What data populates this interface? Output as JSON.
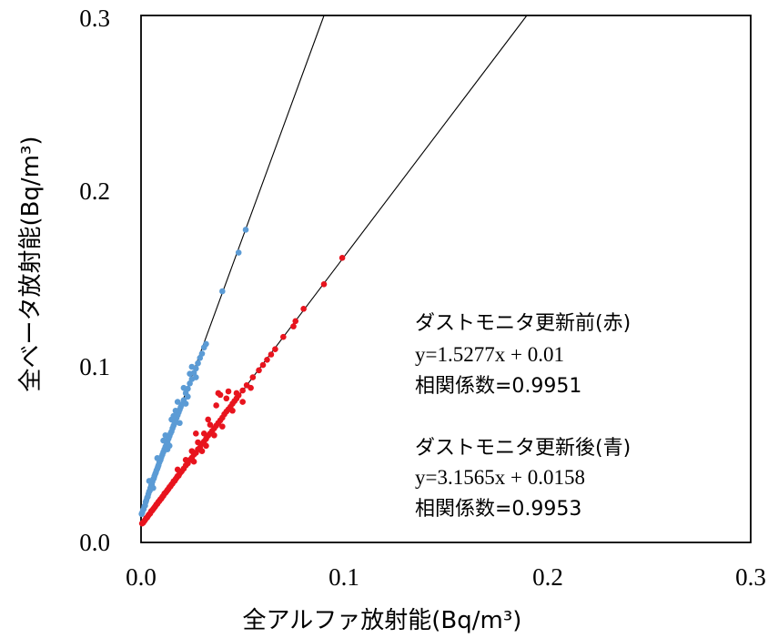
{
  "chart_data": {
    "type": "scatter",
    "xlabel": "全アルファ放射能(Bq/m³)",
    "ylabel": "全ベータ放射能(Bq/m³)",
    "xlim": [
      0,
      0.3
    ],
    "ylim": [
      0,
      0.3
    ],
    "xticks": [
      "0.0",
      "0.1",
      "0.2",
      "0.3"
    ],
    "yticks": [
      "0.0",
      "0.1",
      "0.2",
      "0.3"
    ],
    "grid": false,
    "series": [
      {
        "name": "ダストモニタ更新前(赤)",
        "color": "#e8141e",
        "trend": {
          "slope": 1.5277,
          "intercept": 0.01
        },
        "points": [
          [
            0.0005,
            0.0108
          ],
          [
            0.001,
            0.0112
          ],
          [
            0.0015,
            0.012
          ],
          [
            0.002,
            0.0128
          ],
          [
            0.0025,
            0.0138
          ],
          [
            0.003,
            0.0142
          ],
          [
            0.0035,
            0.0152
          ],
          [
            0.004,
            0.016
          ],
          [
            0.0045,
            0.0165
          ],
          [
            0.005,
            0.0178
          ],
          [
            0.0055,
            0.0182
          ],
          [
            0.006,
            0.019
          ],
          [
            0.0065,
            0.0198
          ],
          [
            0.007,
            0.0205
          ],
          [
            0.0075,
            0.0215
          ],
          [
            0.008,
            0.022
          ],
          [
            0.0085,
            0.023
          ],
          [
            0.009,
            0.0236
          ],
          [
            0.0095,
            0.0245
          ],
          [
            0.01,
            0.025
          ],
          [
            0.0105,
            0.026
          ],
          [
            0.011,
            0.0266
          ],
          [
            0.0115,
            0.0278
          ],
          [
            0.012,
            0.0282
          ],
          [
            0.0125,
            0.029
          ],
          [
            0.013,
            0.0298
          ],
          [
            0.0135,
            0.0305
          ],
          [
            0.014,
            0.0315
          ],
          [
            0.0145,
            0.032
          ],
          [
            0.015,
            0.033
          ],
          [
            0.0155,
            0.0335
          ],
          [
            0.016,
            0.0348
          ],
          [
            0.0165,
            0.035
          ],
          [
            0.017,
            0.036
          ],
          [
            0.0175,
            0.0368
          ],
          [
            0.018,
            0.0378
          ],
          [
            0.0185,
            0.038
          ],
          [
            0.019,
            0.0392
          ],
          [
            0.0195,
            0.04
          ],
          [
            0.02,
            0.0405
          ],
          [
            0.021,
            0.042
          ],
          [
            0.022,
            0.0438
          ],
          [
            0.023,
            0.045
          ],
          [
            0.024,
            0.047
          ],
          [
            0.025,
            0.0482
          ],
          [
            0.026,
            0.05
          ],
          [
            0.027,
            0.051
          ],
          [
            0.028,
            0.053
          ],
          [
            0.029,
            0.054
          ],
          [
            0.03,
            0.0562
          ],
          [
            0.031,
            0.0575
          ],
          [
            0.032,
            0.059
          ],
          [
            0.033,
            0.0608
          ],
          [
            0.034,
            0.062
          ],
          [
            0.035,
            0.0635
          ],
          [
            0.036,
            0.065
          ],
          [
            0.037,
            0.0665
          ],
          [
            0.038,
            0.068
          ],
          [
            0.039,
            0.0695
          ],
          [
            0.04,
            0.071
          ],
          [
            0.041,
            0.073
          ],
          [
            0.042,
            0.0745
          ],
          [
            0.043,
            0.0758
          ],
          [
            0.044,
            0.0772
          ],
          [
            0.045,
            0.079
          ],
          [
            0.046,
            0.0805
          ],
          [
            0.047,
            0.082
          ],
          [
            0.048,
            0.0838
          ],
          [
            0.05,
            0.0865
          ],
          [
            0.052,
            0.0895
          ],
          [
            0.055,
            0.094
          ],
          [
            0.058,
            0.098
          ],
          [
            0.06,
            0.101
          ],
          [
            0.062,
            0.104
          ],
          [
            0.064,
            0.107
          ],
          [
            0.066,
            0.11
          ],
          [
            0.07,
            0.117
          ],
          [
            0.075,
            0.123
          ],
          [
            0.076,
            0.126
          ],
          [
            0.08,
            0.133
          ],
          [
            0.09,
            0.147
          ],
          [
            0.099,
            0.162
          ],
          [
            0.018,
            0.0415
          ],
          [
            0.022,
            0.047
          ],
          [
            0.025,
            0.052
          ],
          [
            0.026,
            0.046
          ],
          [
            0.028,
            0.057
          ],
          [
            0.031,
            0.062
          ],
          [
            0.032,
            0.055
          ],
          [
            0.034,
            0.067
          ],
          [
            0.036,
            0.061
          ],
          [
            0.037,
            0.078
          ],
          [
            0.039,
            0.084
          ],
          [
            0.04,
            0.066
          ],
          [
            0.042,
            0.082
          ],
          [
            0.043,
            0.086
          ],
          [
            0.045,
            0.075
          ],
          [
            0.047,
            0.085
          ],
          [
            0.05,
            0.08
          ],
          [
            0.054,
            0.088
          ],
          [
            0.027,
            0.062
          ],
          [
            0.033,
            0.07
          ],
          [
            0.038,
            0.085
          ],
          [
            0.03,
            0.052
          ]
        ]
      },
      {
        "name": "ダストモニタ更新後(青)",
        "color": "#5b9bd5",
        "trend": {
          "slope": 3.1565,
          "intercept": 0.0158
        },
        "points": [
          [
            0.0003,
            0.0162
          ],
          [
            0.0006,
            0.017
          ],
          [
            0.001,
            0.0185
          ],
          [
            0.0013,
            0.019
          ],
          [
            0.0016,
            0.0205
          ],
          [
            0.002,
            0.021
          ],
          [
            0.0023,
            0.023
          ],
          [
            0.0026,
            0.024
          ],
          [
            0.003,
            0.0255
          ],
          [
            0.0033,
            0.026
          ],
          [
            0.0036,
            0.0275
          ],
          [
            0.004,
            0.029
          ],
          [
            0.0043,
            0.0295
          ],
          [
            0.0046,
            0.031
          ],
          [
            0.005,
            0.0325
          ],
          [
            0.0053,
            0.033
          ],
          [
            0.0056,
            0.0345
          ],
          [
            0.006,
            0.036
          ],
          [
            0.0063,
            0.0365
          ],
          [
            0.0066,
            0.0378
          ],
          [
            0.007,
            0.039
          ],
          [
            0.0073,
            0.0398
          ],
          [
            0.0076,
            0.041
          ],
          [
            0.008,
            0.042
          ],
          [
            0.0083,
            0.043
          ],
          [
            0.0086,
            0.044
          ],
          [
            0.009,
            0.0455
          ],
          [
            0.0093,
            0.0465
          ],
          [
            0.0096,
            0.047
          ],
          [
            0.01,
            0.0485
          ],
          [
            0.0105,
            0.05
          ],
          [
            0.011,
            0.0515
          ],
          [
            0.0115,
            0.053
          ],
          [
            0.012,
            0.0545
          ],
          [
            0.0125,
            0.0555
          ],
          [
            0.013,
            0.057
          ],
          [
            0.0135,
            0.059
          ],
          [
            0.014,
            0.0605
          ],
          [
            0.0145,
            0.062
          ],
          [
            0.015,
            0.0632
          ],
          [
            0.0155,
            0.065
          ],
          [
            0.016,
            0.0665
          ],
          [
            0.0165,
            0.0678
          ],
          [
            0.017,
            0.069
          ],
          [
            0.0175,
            0.071
          ],
          [
            0.018,
            0.0725
          ],
          [
            0.0185,
            0.074
          ],
          [
            0.019,
            0.0755
          ],
          [
            0.0195,
            0.077
          ],
          [
            0.02,
            0.0785
          ],
          [
            0.021,
            0.081
          ],
          [
            0.022,
            0.085
          ],
          [
            0.023,
            0.0875
          ],
          [
            0.024,
            0.0905
          ],
          [
            0.025,
            0.093
          ],
          [
            0.026,
            0.0965
          ],
          [
            0.027,
            0.099
          ],
          [
            0.028,
            0.102
          ],
          [
            0.029,
            0.105
          ],
          [
            0.03,
            0.1075
          ],
          [
            0.031,
            0.111
          ],
          [
            0.032,
            0.113
          ],
          [
            0.04,
            0.143
          ],
          [
            0.048,
            0.165
          ],
          [
            0.0515,
            0.178
          ],
          [
            0.004,
            0.035
          ],
          [
            0.006,
            0.031
          ],
          [
            0.008,
            0.048
          ],
          [
            0.011,
            0.058
          ],
          [
            0.013,
            0.053
          ],
          [
            0.015,
            0.07
          ],
          [
            0.017,
            0.075
          ],
          [
            0.019,
            0.068
          ],
          [
            0.021,
            0.088
          ],
          [
            0.023,
            0.083
          ],
          [
            0.025,
            0.1
          ],
          [
            0.027,
            0.094
          ],
          [
            0.012,
            0.061
          ],
          [
            0.014,
            0.055
          ],
          [
            0.016,
            0.072
          ],
          [
            0.018,
            0.08
          ],
          [
            0.022,
            0.079
          ],
          [
            0.024,
            0.096
          ]
        ]
      }
    ],
    "annotations": [
      {
        "label": "ダストモニタ更新前(赤)",
        "equation": "y=1.5277x + 0.01",
        "correlation": "相関係数=0.9951"
      },
      {
        "label": "ダストモニタ更新後(青)",
        "equation": "y=3.1565x + 0.0158",
        "correlation": "相関係数=0.9953"
      }
    ]
  }
}
